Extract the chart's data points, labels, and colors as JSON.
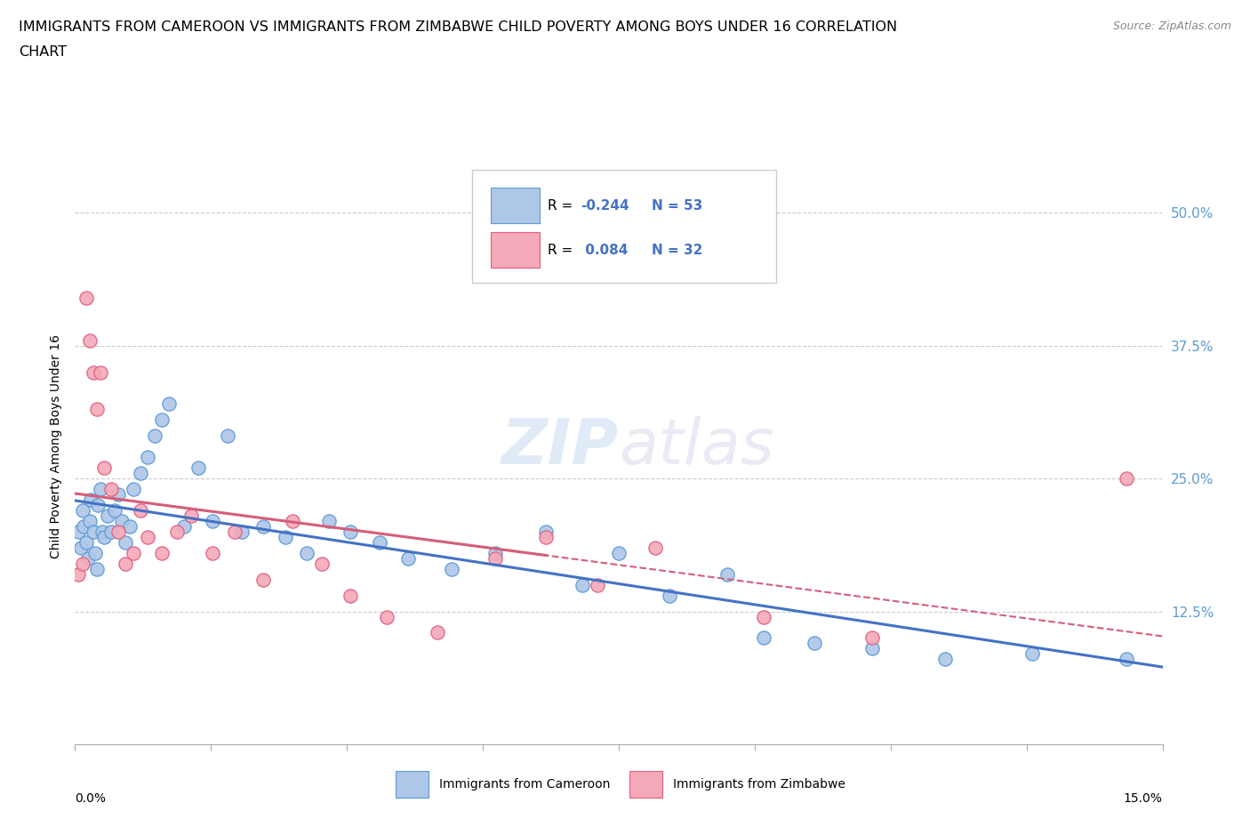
{
  "title_line1": "IMMIGRANTS FROM CAMEROON VS IMMIGRANTS FROM ZIMBABWE CHILD POVERTY AMONG BOYS UNDER 16 CORRELATION",
  "title_line2": "CHART",
  "source": "Source: ZipAtlas.com",
  "ylabel": "Child Poverty Among Boys Under 16",
  "x_min": 0.0,
  "x_max": 15.0,
  "y_min": 0.0,
  "y_max": 56.0,
  "yticks": [
    12.5,
    25.0,
    37.5,
    50.0
  ],
  "xtick_positions": [
    0.0,
    1.875,
    3.75,
    5.625,
    7.5,
    9.375,
    11.25,
    13.125,
    15.0
  ],
  "cameroon_color": "#aec6e8",
  "zimbabwe_color": "#f4a9b8",
  "cameroon_edge": "#5b9bd5",
  "zimbabwe_edge": "#e06080",
  "R_cameroon": -0.244,
  "N_cameroon": 53,
  "R_zimbabwe": 0.084,
  "N_zimbabwe": 32,
  "reg_color_cameroon": "#4472c4",
  "reg_color_zimbabwe": "#d45f7a",
  "watermark_color": "#d0dff0",
  "legend_label_cameroon": "Immigrants from Cameroon",
  "legend_label_zimbabwe": "Immigrants from Zimbabwe",
  "cameroon_x": [
    0.05,
    0.08,
    0.1,
    0.12,
    0.15,
    0.18,
    0.2,
    0.22,
    0.25,
    0.28,
    0.3,
    0.32,
    0.35,
    0.38,
    0.4,
    0.45,
    0.5,
    0.55,
    0.6,
    0.65,
    0.7,
    0.75,
    0.8,
    0.9,
    1.0,
    1.1,
    1.2,
    1.3,
    1.5,
    1.7,
    1.9,
    2.1,
    2.3,
    2.6,
    2.9,
    3.2,
    3.5,
    3.8,
    4.2,
    4.6,
    5.2,
    5.8,
    6.5,
    7.0,
    7.5,
    8.2,
    9.0,
    9.5,
    10.2,
    11.0,
    12.0,
    13.2,
    14.5
  ],
  "cameroon_y": [
    20.0,
    18.5,
    22.0,
    20.5,
    19.0,
    17.5,
    21.0,
    23.0,
    20.0,
    18.0,
    16.5,
    22.5,
    24.0,
    20.0,
    19.5,
    21.5,
    20.0,
    22.0,
    23.5,
    21.0,
    19.0,
    20.5,
    24.0,
    25.5,
    27.0,
    29.0,
    30.5,
    32.0,
    20.5,
    26.0,
    21.0,
    29.0,
    20.0,
    20.5,
    19.5,
    18.0,
    21.0,
    20.0,
    19.0,
    17.5,
    16.5,
    18.0,
    20.0,
    15.0,
    18.0,
    14.0,
    16.0,
    10.0,
    9.5,
    9.0,
    8.0,
    8.5,
    8.0
  ],
  "zimbabwe_x": [
    0.05,
    0.1,
    0.15,
    0.2,
    0.25,
    0.3,
    0.35,
    0.4,
    0.5,
    0.6,
    0.7,
    0.8,
    0.9,
    1.0,
    1.2,
    1.4,
    1.6,
    1.9,
    2.2,
    2.6,
    3.0,
    3.4,
    3.8,
    4.3,
    5.0,
    5.8,
    6.5,
    7.2,
    8.0,
    9.5,
    11.0,
    14.5
  ],
  "zimbabwe_y": [
    16.0,
    17.0,
    42.0,
    38.0,
    35.0,
    31.5,
    35.0,
    26.0,
    24.0,
    20.0,
    17.0,
    18.0,
    22.0,
    19.5,
    18.0,
    20.0,
    21.5,
    18.0,
    20.0,
    15.5,
    21.0,
    17.0,
    14.0,
    12.0,
    10.5,
    17.5,
    19.5,
    15.0,
    18.5,
    12.0,
    10.0,
    25.0
  ]
}
